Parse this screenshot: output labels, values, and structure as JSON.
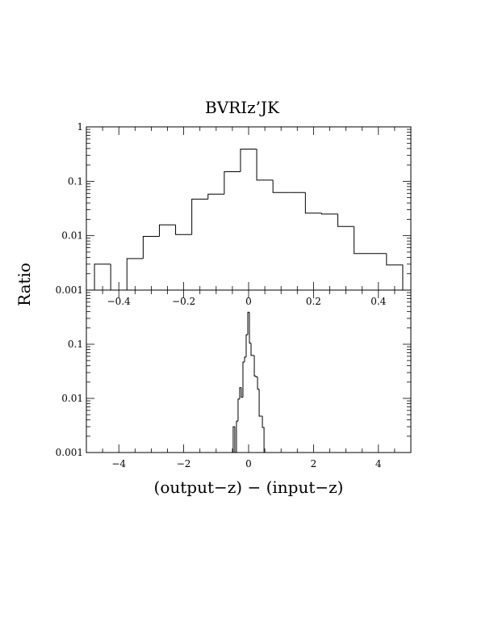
{
  "chart_data": [
    {
      "type": "histogram",
      "panel": "top",
      "title": "BVRIz’JK",
      "ylabel": "Ratio",
      "xlabel": "",
      "yscale": "log",
      "xlim": [
        -0.5,
        0.5
      ],
      "ylim": [
        0.001,
        1
      ],
      "xticks": [
        -0.4,
        -0.2,
        0,
        0.2,
        0.4
      ],
      "xtick_labels": [
        "−0.4",
        "−0.2",
        "0",
        "0.2",
        "0.4"
      ],
      "yticks": [
        0.001,
        0.01,
        0.1,
        1
      ],
      "ytick_labels": [
        "0.001",
        "0.01",
        "0.1",
        "1"
      ],
      "bin_width": 0.05,
      "bins": [
        {
          "x0": -0.475,
          "x1": -0.425,
          "y": 0.003
        },
        {
          "x0": -0.425,
          "x1": -0.375,
          "y": 0.001
        },
        {
          "x0": -0.375,
          "x1": -0.325,
          "y": 0.0038
        },
        {
          "x0": -0.325,
          "x1": -0.275,
          "y": 0.0097
        },
        {
          "x0": -0.275,
          "x1": -0.225,
          "y": 0.0158
        },
        {
          "x0": -0.225,
          "x1": -0.175,
          "y": 0.0105
        },
        {
          "x0": -0.175,
          "x1": -0.125,
          "y": 0.047
        },
        {
          "x0": -0.125,
          "x1": -0.075,
          "y": 0.058
        },
        {
          "x0": -0.075,
          "x1": -0.025,
          "y": 0.15
        },
        {
          "x0": -0.025,
          "x1": 0.025,
          "y": 0.39
        },
        {
          "x0": 0.025,
          "x1": 0.075,
          "y": 0.105
        },
        {
          "x0": 0.075,
          "x1": 0.125,
          "y": 0.062
        },
        {
          "x0": 0.125,
          "x1": 0.175,
          "y": 0.062
        },
        {
          "x0": 0.175,
          "x1": 0.225,
          "y": 0.026
        },
        {
          "x0": 0.225,
          "x1": 0.275,
          "y": 0.025
        },
        {
          "x0": 0.275,
          "x1": 0.325,
          "y": 0.0148
        },
        {
          "x0": 0.325,
          "x1": 0.375,
          "y": 0.0047
        },
        {
          "x0": 0.375,
          "x1": 0.425,
          "y": 0.0047
        },
        {
          "x0": 0.425,
          "x1": 0.475,
          "y": 0.0029
        }
      ]
    },
    {
      "type": "histogram",
      "panel": "bottom",
      "title": "",
      "ylabel": "Ratio",
      "xlabel": "(output−z) − (input−z)",
      "yscale": "log",
      "xlim": [
        -5,
        5
      ],
      "ylim": [
        0.001,
        1
      ],
      "xticks": [
        -4,
        -2,
        0,
        2,
        4
      ],
      "xtick_labels": [
        "−4",
        "−2",
        "0",
        "2",
        "4"
      ],
      "yticks": [
        0.001,
        0.01,
        0.1
      ],
      "ytick_labels": [
        "0.001",
        "0.01",
        "0.1"
      ],
      "bin_width": 0.05,
      "bins": [
        {
          "x0": -0.475,
          "x1": -0.425,
          "y": 0.003
        },
        {
          "x0": -0.425,
          "x1": -0.375,
          "y": 0.001
        },
        {
          "x0": -0.375,
          "x1": -0.325,
          "y": 0.0038
        },
        {
          "x0": -0.325,
          "x1": -0.275,
          "y": 0.0097
        },
        {
          "x0": -0.275,
          "x1": -0.225,
          "y": 0.0158
        },
        {
          "x0": -0.225,
          "x1": -0.175,
          "y": 0.0105
        },
        {
          "x0": -0.175,
          "x1": -0.125,
          "y": 0.047
        },
        {
          "x0": -0.125,
          "x1": -0.075,
          "y": 0.058
        },
        {
          "x0": -0.075,
          "x1": -0.025,
          "y": 0.15
        },
        {
          "x0": -0.025,
          "x1": 0.025,
          "y": 0.39
        },
        {
          "x0": 0.025,
          "x1": 0.075,
          "y": 0.105
        },
        {
          "x0": 0.075,
          "x1": 0.125,
          "y": 0.062
        },
        {
          "x0": 0.125,
          "x1": 0.175,
          "y": 0.062
        },
        {
          "x0": 0.175,
          "x1": 0.225,
          "y": 0.026
        },
        {
          "x0": 0.225,
          "x1": 0.275,
          "y": 0.025
        },
        {
          "x0": 0.275,
          "x1": 0.325,
          "y": 0.0148
        },
        {
          "x0": 0.325,
          "x1": 0.375,
          "y": 0.0047
        },
        {
          "x0": 0.375,
          "x1": 0.425,
          "y": 0.0047
        },
        {
          "x0": 0.425,
          "x1": 0.475,
          "y": 0.0029
        }
      ]
    }
  ]
}
